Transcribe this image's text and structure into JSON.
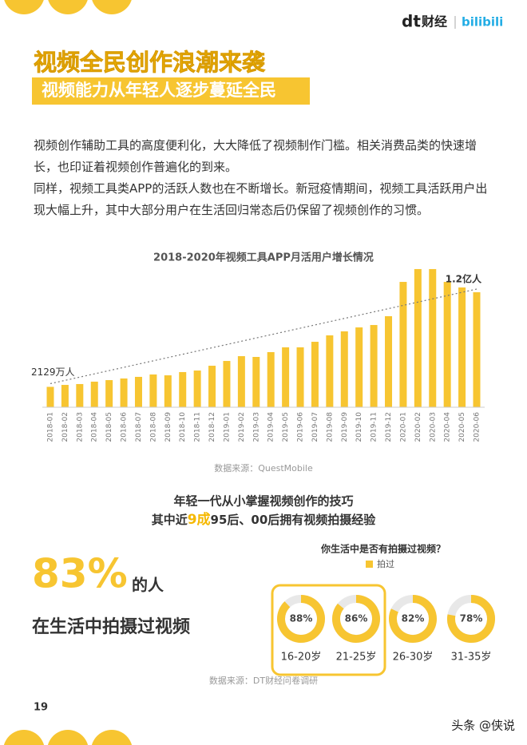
{
  "header": {
    "logo_dt": "dt",
    "logo_cj": "财经",
    "logo_bili": "bilibili"
  },
  "title": "视频全民创作浪潮来袭",
  "subtitle": "视频能力从年轻人逐步蔓延全民",
  "paragraphs": [
    "视频创作辅助工具的高度便利化，大大降低了视频制作门槛。相关消费品类的快速增长，也印证着视频创作普遍化的到来。",
    "同样，视频工具类APP的活跃人数也在不断增长。新冠疫情期间，视频工具活跃用户出现大幅上升，其中大部分用户在生活回归常态后仍保留了视频创作的习惯。"
  ],
  "chart_data": [
    {
      "type": "bar",
      "title": "2018-2020年视频工具APP月活用户增长情况",
      "categories": [
        "2018-01",
        "2018-02",
        "2018-03",
        "2018-04",
        "2018-05",
        "2018-06",
        "2018-07",
        "2018-08",
        "2018-09",
        "2018-10",
        "2018-11",
        "2018-12",
        "2019-01",
        "2019-02",
        "2019-03",
        "2019-04",
        "2019-05",
        "2019-06",
        "2019-07",
        "2019-08",
        "2019-09",
        "2019-10",
        "2019-11",
        "2019-12",
        "2020-01",
        "2020-02",
        "2020-03",
        "2020-04",
        "2020-05",
        "2020-06"
      ],
      "values": [
        2129,
        2330,
        2420,
        2670,
        2830,
        3000,
        3170,
        3420,
        3330,
        3670,
        3830,
        4330,
        4830,
        5330,
        5250,
        5750,
        6250,
        6250,
        6830,
        7500,
        7920,
        8330,
        8580,
        9500,
        13080,
        14420,
        14420,
        13080,
        12500,
        12000
      ],
      "value_labels": [
        "2129万人",
        null,
        null,
        null,
        null,
        null,
        null,
        null,
        null,
        null,
        null,
        null,
        null,
        null,
        null,
        null,
        null,
        null,
        null,
        null,
        null,
        null,
        null,
        null,
        null,
        null,
        null,
        null,
        null,
        "1.2亿人"
      ],
      "color": "#f7c531",
      "trendline": true,
      "source": "数据来源：QuestMobile"
    },
    {
      "type": "donut",
      "title": "你生活中是否有拍摄过视频？",
      "series": [
        {
          "name": "拍过",
          "color": "#f7c531",
          "values": [
            88,
            86,
            82,
            78
          ]
        }
      ],
      "value_labels": [
        "88%",
        "86%",
        "82%",
        "78%"
      ],
      "categories": [
        "16-20岁",
        "21-25岁",
        "26-30岁",
        "31-35岁"
      ],
      "rest_color": "#e8e8e8",
      "source": "数据来源：DT财经问卷调研"
    }
  ],
  "section2": {
    "line1": "年轻一代从小掌握视频创作的技巧",
    "line2_a": "其中近",
    "line2_b": "9成",
    "line2_c": "95后、00后拥有视频拍摄经验",
    "stat": "83%",
    "stat_unit": "的人",
    "stat_text": "在生活中拍摄过视频"
  },
  "page_number": "19",
  "footer": "头条 @侠说"
}
